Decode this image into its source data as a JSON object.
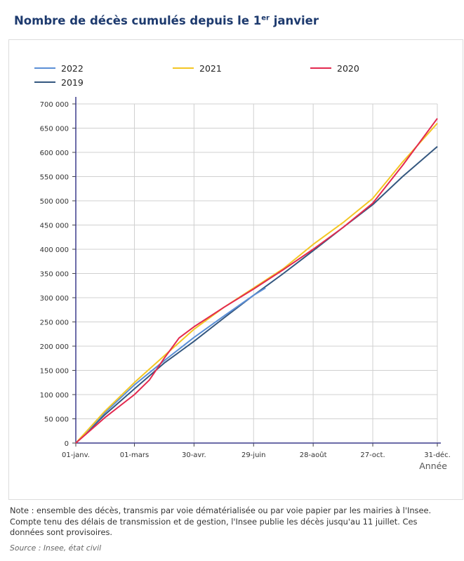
{
  "page": {
    "title_main": "Nombre de décès cumulés depuis le 1",
    "title_sup": "er",
    "title_end": " janvier",
    "note": "Note : ensemble des décès, transmis par voie dématérialisée ou par voie papier par les mairies à l'Insee. Compte tenu des délais de transmission et de gestion, l'Insee publie les décès jusqu'au 11 juillet. Ces données sont provisoires.",
    "source": "Source : Insee, état civil"
  },
  "chart_data": {
    "type": "line",
    "xlabel": "Année",
    "ylabel": "",
    "x_tick_labels": [
      "01-janv.",
      "01-mars",
      "30-avr.",
      "29-juin",
      "28-août",
      "27-oct.",
      "31-déc."
    ],
    "x_tick_days": [
      1,
      60,
      120,
      180,
      240,
      300,
      365
    ],
    "xlim": [
      1,
      365
    ],
    "ylim": [
      0,
      700000
    ],
    "y_ticks": [
      0,
      50000,
      100000,
      150000,
      200000,
      250000,
      300000,
      350000,
      400000,
      450000,
      500000,
      550000,
      600000,
      650000,
      700000
    ],
    "y_tick_labels": [
      "0",
      "50 000",
      "100 000",
      "150 000",
      "200 000",
      "250 000",
      "300 000",
      "350 000",
      "400 000",
      "450 000",
      "500 000",
      "550 000",
      "600 000",
      "650 000",
      "700 000"
    ],
    "grid": true,
    "legend_position": "top",
    "series": [
      {
        "name": "2022",
        "color": "#5b8fd6",
        "x": [
          1,
          30,
          60,
          90,
          120,
          150,
          180,
          192
        ],
        "y": [
          0,
          62000,
          120000,
          170000,
          218000,
          262000,
          305000,
          320000
        ]
      },
      {
        "name": "2021",
        "color": "#f3c623",
        "x": [
          1,
          30,
          60,
          90,
          120,
          150,
          180,
          210,
          240,
          270,
          300,
          330,
          365
        ],
        "y": [
          0,
          65000,
          125000,
          180000,
          235000,
          280000,
          320000,
          360000,
          410000,
          455000,
          505000,
          580000,
          660000
        ]
      },
      {
        "name": "2020",
        "color": "#e3294f",
        "x": [
          1,
          30,
          60,
          75,
          90,
          105,
          120,
          150,
          180,
          210,
          240,
          270,
          300,
          330,
          365
        ],
        "y": [
          0,
          52000,
          100000,
          130000,
          175000,
          217000,
          240000,
          280000,
          318000,
          358000,
          400000,
          445000,
          495000,
          573000,
          670000
        ]
      },
      {
        "name": "2019",
        "color": "#34577f",
        "x": [
          1,
          30,
          60,
          90,
          120,
          150,
          180,
          210,
          240,
          270,
          300,
          330,
          365
        ],
        "y": [
          0,
          58000,
          112000,
          165000,
          210000,
          258000,
          305000,
          350000,
          397000,
          445000,
          492000,
          550000,
          612000
        ]
      }
    ]
  }
}
